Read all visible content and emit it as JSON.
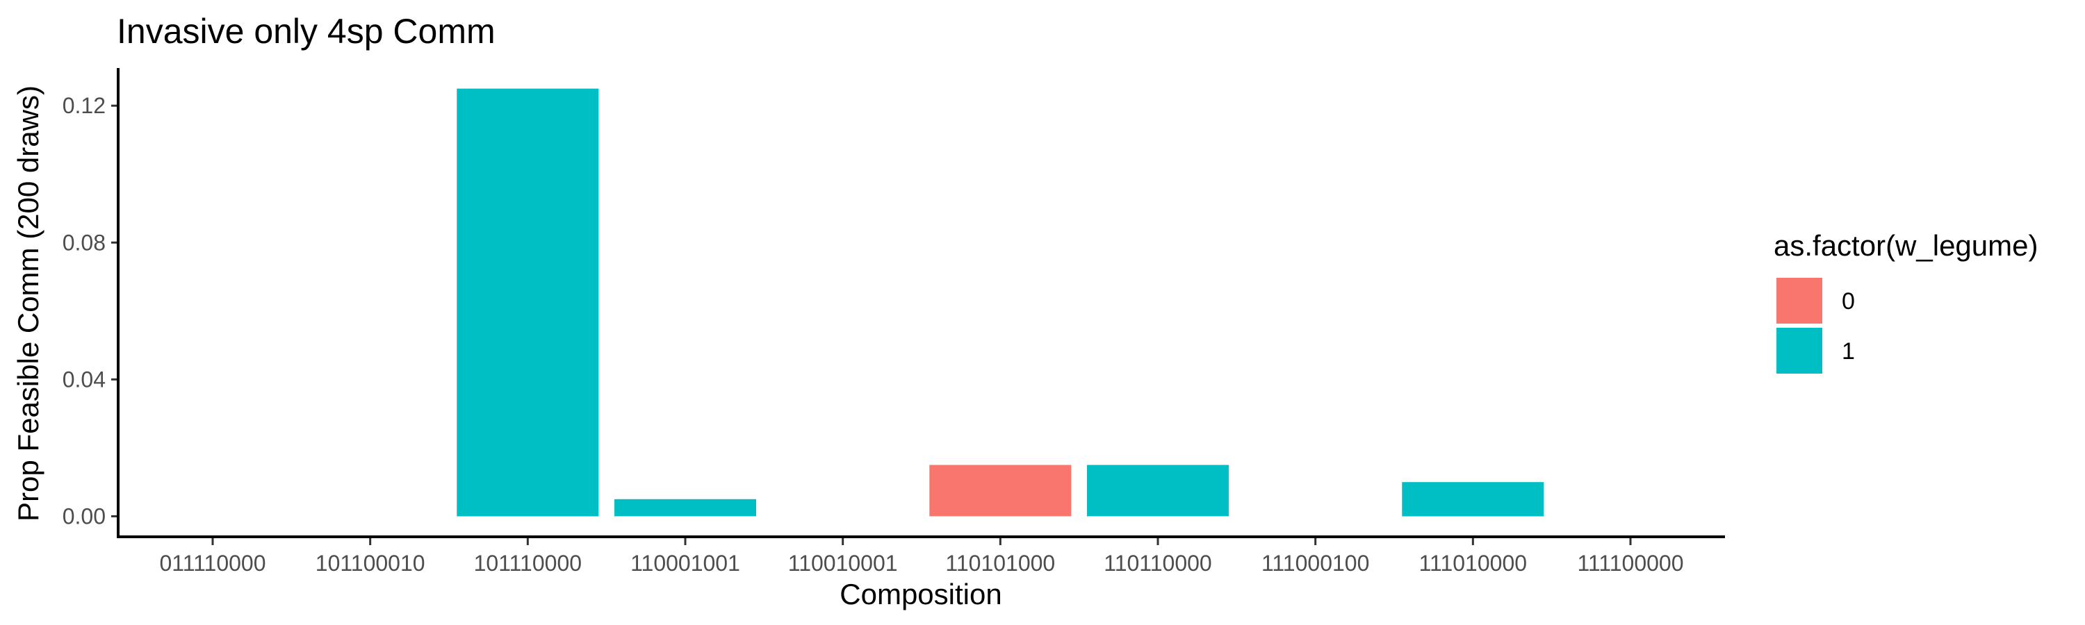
{
  "chart_data": {
    "type": "bar",
    "title": "Invasive only 4sp Comm",
    "xlabel": "Composition",
    "ylabel": "Prop Feasible Comm (200 draws)",
    "categories": [
      "011110000",
      "101100010",
      "101110000",
      "110001001",
      "110010001",
      "110101000",
      "110110000",
      "111000100",
      "111010000",
      "111100000"
    ],
    "values": [
      0,
      0,
      0.125,
      0.005,
      0,
      0.015,
      0.015,
      0,
      0.01,
      0
    ],
    "groups": [
      null,
      null,
      "1",
      "1",
      null,
      "0",
      "1",
      null,
      "1",
      null
    ],
    "yticks": [
      "0.00",
      "0.04",
      "0.08",
      "0.12"
    ],
    "ytick_values": [
      0,
      0.04,
      0.08,
      0.12
    ],
    "ylim": [
      -0.006,
      0.131
    ],
    "grid": false,
    "legend": {
      "title": "as.factor(w_legume)",
      "placement": "right",
      "entries": [
        {
          "label": "0",
          "color": "#F8766D"
        },
        {
          "label": "1",
          "color": "#00BFC4"
        }
      ]
    },
    "colors": {
      "0": "#F8766D",
      "1": "#00BFC4"
    }
  }
}
